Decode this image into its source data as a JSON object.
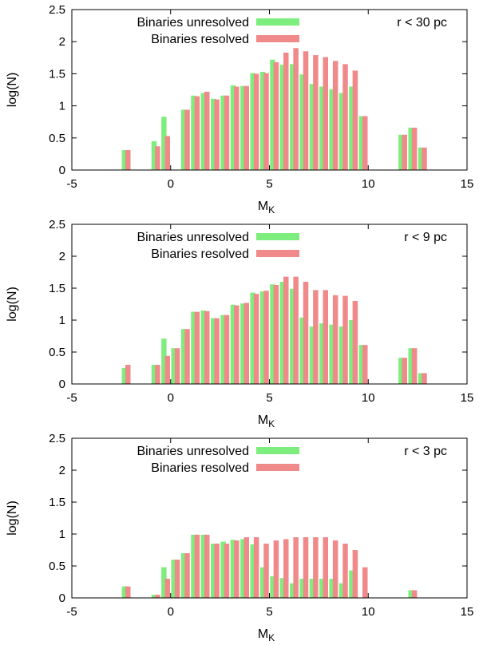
{
  "chart_data": [
    {
      "type": "bar",
      "title": "",
      "annotation": "r < 30 pc",
      "xlabel": "M",
      "xlabel_sub": "K",
      "ylabel": "log(N)",
      "xlim": [
        -5,
        15
      ],
      "ylim": [
        0,
        2.5
      ],
      "xticks": [
        "-5",
        "0",
        "5",
        "10",
        "15"
      ],
      "yticks": [
        "0",
        "0.5",
        "1",
        "1.5",
        "2",
        "2.5"
      ],
      "legend_position": "top-center",
      "series": [
        {
          "name": "Binaries unresolved",
          "color": "#7dee7d",
          "x": [
            -2.25,
            -0.75,
            -0.25,
            0.75,
            1.25,
            1.75,
            2.25,
            2.75,
            3.25,
            3.75,
            4.25,
            4.75,
            5.25,
            5.75,
            6.25,
            6.75,
            7.25,
            7.75,
            8.25,
            8.75,
            9.25,
            9.75,
            11.75,
            12.25,
            12.75
          ],
          "values": [
            0.31,
            0.45,
            0.83,
            0.94,
            1.16,
            1.2,
            1.11,
            1.16,
            1.32,
            1.31,
            1.51,
            1.53,
            1.72,
            1.64,
            1.65,
            1.49,
            1.34,
            1.3,
            1.26,
            1.2,
            1.3,
            0.84,
            0.55,
            0.66,
            0.35
          ]
        },
        {
          "name": "Binaries resolved",
          "color": "#f08a8a",
          "x": [
            -2.25,
            -0.75,
            -0.25,
            0.75,
            1.25,
            1.75,
            2.25,
            2.75,
            3.25,
            3.75,
            4.25,
            4.75,
            5.25,
            5.75,
            6.25,
            6.75,
            7.25,
            7.75,
            8.25,
            8.75,
            9.25,
            9.75,
            11.75,
            12.25,
            12.75
          ],
          "values": [
            0.31,
            0.37,
            0.53,
            0.94,
            1.15,
            1.22,
            1.1,
            1.16,
            1.3,
            1.31,
            1.5,
            1.51,
            1.68,
            1.83,
            1.9,
            1.85,
            1.79,
            1.76,
            1.7,
            1.65,
            1.55,
            0.84,
            0.55,
            0.66,
            0.35
          ]
        }
      ]
    },
    {
      "type": "bar",
      "title": "",
      "annotation": "r < 9 pc",
      "xlabel": "M",
      "xlabel_sub": "K",
      "ylabel": "log(N)",
      "xlim": [
        -5,
        15
      ],
      "ylim": [
        0,
        2.5
      ],
      "xticks": [
        "-5",
        "0",
        "5",
        "10",
        "15"
      ],
      "yticks": [
        "0",
        "0.5",
        "1",
        "1.5",
        "2",
        "2.5"
      ],
      "legend_position": "top-center",
      "series": [
        {
          "name": "Binaries unresolved",
          "color": "#7dee7d",
          "x": [
            -2.25,
            -0.75,
            -0.25,
            0.25,
            0.75,
            1.25,
            1.75,
            2.25,
            2.75,
            3.25,
            3.75,
            4.25,
            4.75,
            5.25,
            5.75,
            6.25,
            6.75,
            7.25,
            7.75,
            8.25,
            8.75,
            9.25,
            9.75,
            11.75,
            12.25,
            12.75
          ],
          "values": [
            0.25,
            0.3,
            0.71,
            0.56,
            0.86,
            1.13,
            1.15,
            1.03,
            1.08,
            1.24,
            1.26,
            1.43,
            1.45,
            1.56,
            1.6,
            1.49,
            1.04,
            0.9,
            0.95,
            0.93,
            0.9,
            1.0,
            0.61,
            0.41,
            0.56,
            0.17
          ]
        },
        {
          "name": "Binaries resolved",
          "color": "#f08a8a",
          "x": [
            -2.25,
            -0.75,
            -0.25,
            0.25,
            0.75,
            1.25,
            1.75,
            2.25,
            2.75,
            3.25,
            3.75,
            4.25,
            4.75,
            5.25,
            5.75,
            6.25,
            6.75,
            7.25,
            7.75,
            8.25,
            8.75,
            9.25,
            9.75,
            11.75,
            12.25,
            12.75
          ],
          "values": [
            0.3,
            0.3,
            0.44,
            0.56,
            0.86,
            1.13,
            1.14,
            1.03,
            1.08,
            1.23,
            1.27,
            1.41,
            1.46,
            1.55,
            1.68,
            1.68,
            1.6,
            1.47,
            1.47,
            1.39,
            1.38,
            1.3,
            0.61,
            0.41,
            0.56,
            0.17
          ]
        }
      ]
    },
    {
      "type": "bar",
      "title": "",
      "annotation": "r < 3 pc",
      "xlabel": "M",
      "xlabel_sub": "K",
      "ylabel": "log(N)",
      "xlim": [
        -5,
        15
      ],
      "ylim": [
        0,
        2.5
      ],
      "xticks": [
        "-5",
        "0",
        "5",
        "10",
        "15"
      ],
      "yticks": [
        "0",
        "0.5",
        "1",
        "1.5",
        "2",
        "2.5"
      ],
      "legend_position": "top-center",
      "series": [
        {
          "name": "Binaries unresolved",
          "color": "#7dee7d",
          "x": [
            -2.25,
            -0.75,
            -0.25,
            0.25,
            0.75,
            1.25,
            1.75,
            2.25,
            2.75,
            3.25,
            3.75,
            4.25,
            4.75,
            5.25,
            5.75,
            6.25,
            6.75,
            7.25,
            7.75,
            8.25,
            8.75,
            9.25,
            9.75,
            12.25
          ],
          "values": [
            0.18,
            0.05,
            0.48,
            0.6,
            0.7,
            0.99,
            0.99,
            0.85,
            0.88,
            0.91,
            0.92,
            0.84,
            0.48,
            0.34,
            0.31,
            0.23,
            0.3,
            0.3,
            0.3,
            0.3,
            0.23,
            0.43,
            0.0,
            0.12
          ]
        },
        {
          "name": "Binaries resolved",
          "color": "#f08a8a",
          "x": [
            -2.25,
            -0.75,
            -0.25,
            0.25,
            0.75,
            1.25,
            1.75,
            2.25,
            2.75,
            3.25,
            3.75,
            4.25,
            4.75,
            5.25,
            5.75,
            6.25,
            6.75,
            7.25,
            7.75,
            8.25,
            8.75,
            9.25,
            9.75,
            12.25
          ],
          "values": [
            0.18,
            0.05,
            0.3,
            0.6,
            0.7,
            0.99,
            0.99,
            0.85,
            0.85,
            0.9,
            0.95,
            0.95,
            0.85,
            0.9,
            0.92,
            0.95,
            0.95,
            0.95,
            0.95,
            0.9,
            0.85,
            0.75,
            0.48,
            0.12
          ]
        }
      ]
    }
  ]
}
